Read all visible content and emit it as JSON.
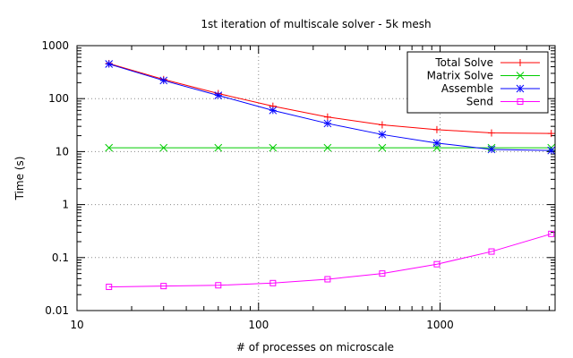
{
  "chart_data": {
    "type": "line",
    "title": "1st iteration of multiscale solver - 5k mesh",
    "xlabel": "# of processes on microscale",
    "ylabel": "Time (s)",
    "x_scale": "log",
    "y_scale": "log",
    "xlim": [
      10,
      4300
    ],
    "ylim": [
      0.01,
      1000
    ],
    "x_ticks": [
      10,
      100,
      1000
    ],
    "x_tick_labels": [
      "10",
      "100",
      "1000"
    ],
    "y_ticks": [
      0.01,
      0.1,
      1,
      10,
      100,
      1000
    ],
    "y_tick_labels": [
      "0.01",
      "0.1",
      "1",
      "10",
      "100",
      "1000"
    ],
    "grid": true,
    "legend_position": "top-right",
    "x": [
      15,
      30,
      60,
      120,
      240,
      480,
      960,
      1920,
      4096
    ],
    "series": [
      {
        "name": "Total Solve",
        "color": "#ff0000",
        "marker": "plus",
        "values": [
          460,
          230,
          125,
          72,
          45,
          32,
          26,
          22.5,
          22
        ]
      },
      {
        "name": "Matrix Solve",
        "color": "#00cc00",
        "marker": "cross",
        "values": [
          11.8,
          11.8,
          11.8,
          11.8,
          11.8,
          11.8,
          11.8,
          11.8,
          11.8
        ]
      },
      {
        "name": "Assemble",
        "color": "#0000ff",
        "marker": "star",
        "values": [
          450,
          220,
          115,
          60,
          34,
          21,
          14.5,
          11,
          10.5
        ]
      },
      {
        "name": "Send",
        "color": "#ff00ff",
        "marker": "square",
        "values": [
          0.028,
          0.029,
          0.03,
          0.033,
          0.039,
          0.05,
          0.075,
          0.13,
          0.28
        ]
      }
    ]
  }
}
